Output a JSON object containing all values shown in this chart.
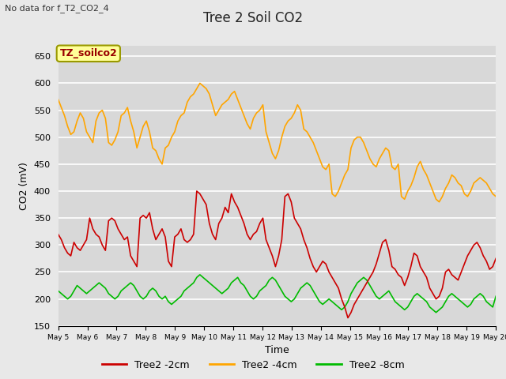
{
  "title": "Tree 2 Soil CO2",
  "subtitle": "No data for f_T2_CO2_4",
  "xlabel": "Time",
  "ylabel": "CO2 (mV)",
  "ylim": [
    150,
    670
  ],
  "yticks": [
    150,
    200,
    250,
    300,
    350,
    400,
    450,
    500,
    550,
    600,
    650
  ],
  "background_color": "#e8e8e8",
  "legend_label_box": "TZ_soilco2",
  "legend_box_color": "#ffff99",
  "legend_box_edge": "#999900",
  "series": {
    "red": {
      "label": "Tree2 -2cm",
      "color": "#cc0000",
      "linewidth": 1.2
    },
    "orange": {
      "label": "Tree2 -4cm",
      "color": "#ffa500",
      "linewidth": 1.2
    },
    "green": {
      "label": "Tree2 -8cm",
      "color": "#00bb00",
      "linewidth": 1.2
    }
  },
  "red_data": [
    320,
    310,
    295,
    285,
    280,
    305,
    295,
    290,
    300,
    310,
    350,
    330,
    320,
    315,
    300,
    290,
    345,
    350,
    345,
    330,
    320,
    310,
    315,
    280,
    270,
    260,
    350,
    355,
    350,
    360,
    330,
    310,
    320,
    330,
    315,
    270,
    260,
    315,
    320,
    330,
    310,
    305,
    310,
    320,
    400,
    395,
    385,
    375,
    340,
    320,
    310,
    340,
    350,
    370,
    360,
    395,
    380,
    370,
    355,
    340,
    320,
    310,
    320,
    325,
    340,
    350,
    310,
    295,
    280,
    260,
    280,
    310,
    390,
    395,
    380,
    350,
    340,
    330,
    310,
    295,
    275,
    260,
    250,
    260,
    270,
    265,
    250,
    240,
    230,
    220,
    200,
    185,
    165,
    175,
    190,
    200,
    210,
    220,
    230,
    240,
    250,
    265,
    285,
    305,
    310,
    290,
    260,
    255,
    245,
    240,
    225,
    240,
    260,
    285,
    280,
    260,
    250,
    240,
    220,
    210,
    200,
    205,
    220,
    250,
    255,
    245,
    240,
    235,
    250,
    265,
    280,
    290,
    300,
    305,
    295,
    280,
    270,
    255,
    260,
    275
  ],
  "orange_data": [
    570,
    555,
    540,
    520,
    505,
    510,
    530,
    545,
    535,
    510,
    500,
    490,
    530,
    545,
    550,
    535,
    490,
    485,
    495,
    510,
    540,
    545,
    555,
    530,
    510,
    480,
    500,
    520,
    530,
    510,
    480,
    475,
    460,
    450,
    480,
    485,
    500,
    510,
    530,
    540,
    545,
    565,
    575,
    580,
    590,
    600,
    595,
    590,
    580,
    560,
    540,
    550,
    560,
    565,
    570,
    580,
    585,
    570,
    555,
    540,
    525,
    515,
    535,
    545,
    550,
    560,
    510,
    490,
    470,
    460,
    475,
    500,
    520,
    530,
    535,
    545,
    560,
    550,
    515,
    510,
    500,
    490,
    475,
    460,
    445,
    440,
    450,
    395,
    390,
    400,
    415,
    430,
    440,
    480,
    495,
    500,
    500,
    490,
    475,
    460,
    450,
    445,
    460,
    470,
    480,
    475,
    445,
    440,
    450,
    390,
    385,
    400,
    410,
    425,
    445,
    455,
    440,
    430,
    415,
    400,
    385,
    380,
    390,
    405,
    415,
    430,
    425,
    415,
    410,
    395,
    390,
    400,
    415,
    420,
    425,
    420,
    415,
    405,
    395,
    390
  ],
  "green_data": [
    215,
    210,
    205,
    200,
    205,
    215,
    225,
    220,
    215,
    210,
    215,
    220,
    225,
    230,
    225,
    220,
    210,
    205,
    200,
    205,
    215,
    220,
    225,
    230,
    225,
    215,
    205,
    200,
    205,
    215,
    220,
    215,
    205,
    200,
    205,
    195,
    190,
    195,
    200,
    205,
    215,
    220,
    225,
    230,
    240,
    245,
    240,
    235,
    230,
    225,
    220,
    215,
    210,
    215,
    220,
    230,
    235,
    240,
    230,
    225,
    215,
    205,
    200,
    205,
    215,
    220,
    225,
    235,
    240,
    235,
    225,
    215,
    205,
    200,
    195,
    200,
    210,
    220,
    225,
    230,
    225,
    215,
    205,
    195,
    190,
    195,
    200,
    195,
    190,
    185,
    180,
    185,
    195,
    210,
    220,
    230,
    235,
    240,
    235,
    225,
    215,
    205,
    200,
    205,
    210,
    215,
    205,
    195,
    190,
    185,
    180,
    185,
    195,
    205,
    210,
    205,
    200,
    195,
    185,
    180,
    175,
    180,
    185,
    195,
    205,
    210,
    205,
    200,
    195,
    190,
    185,
    190,
    200,
    205,
    210,
    205,
    195,
    190,
    185,
    205
  ]
}
